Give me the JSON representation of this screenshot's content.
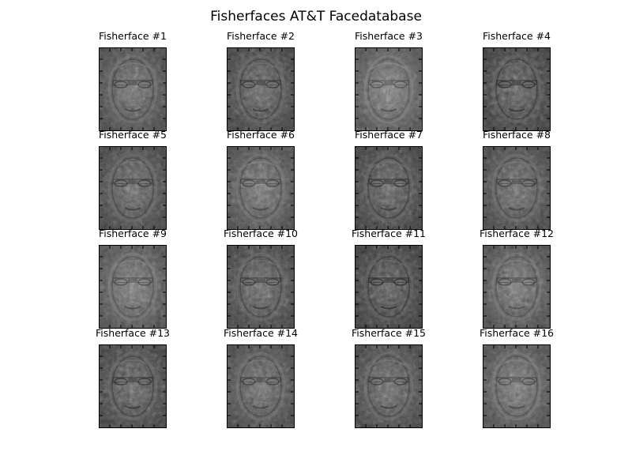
{
  "figure": {
    "title": "Fisherfaces AT&T Facedatabase"
  },
  "panels": [
    {
      "label": "Fisherface #1"
    },
    {
      "label": "Fisherface #2"
    },
    {
      "label": "Fisherface #3"
    },
    {
      "label": "Fisherface #4"
    },
    {
      "label": "Fisherface #5"
    },
    {
      "label": "Fisherface #6"
    },
    {
      "label": "Fisherface #7"
    },
    {
      "label": "Fisherface #8"
    },
    {
      "label": "Fisherface #9"
    },
    {
      "label": "Fisherface #10"
    },
    {
      "label": "Fisherface #11"
    },
    {
      "label": "Fisherface #12"
    },
    {
      "label": "Fisherface #13"
    },
    {
      "label": "Fisherface #14"
    },
    {
      "label": "Fisherface #15"
    },
    {
      "label": "Fisherface #16"
    }
  ],
  "colormap": "grayscale"
}
